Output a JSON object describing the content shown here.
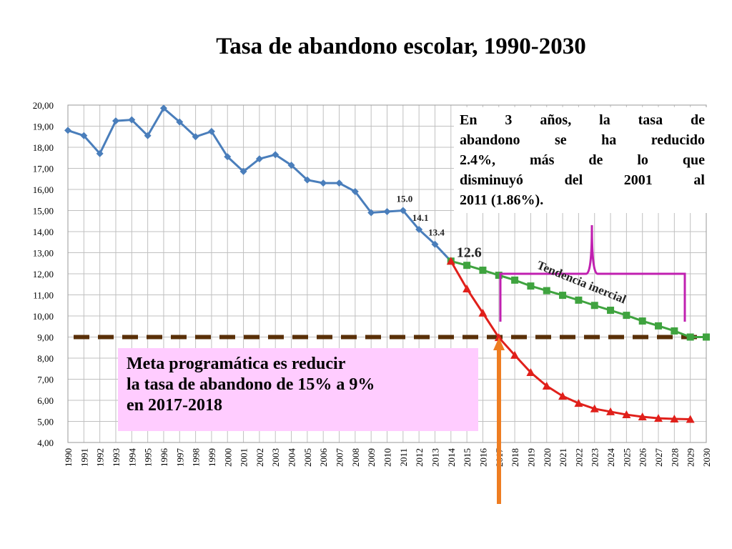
{
  "chart_data": {
    "type": "line",
    "title": "Tasa de abandono escolar, 1990-2030",
    "x": [
      1990,
      1991,
      1992,
      1993,
      1994,
      1995,
      1996,
      1997,
      1998,
      1999,
      2000,
      2001,
      2002,
      2003,
      2004,
      2005,
      2006,
      2007,
      2008,
      2009,
      2010,
      2011,
      2012,
      2013,
      2014,
      2015,
      2016,
      2017,
      2018,
      2019,
      2020,
      2021,
      2022,
      2023,
      2024,
      2025,
      2026,
      2027,
      2028,
      2029,
      2030
    ],
    "xlim": [
      1990,
      2030
    ],
    "ylim": [
      4,
      20
    ],
    "yticks": [
      {
        "value": 4,
        "label": "4,00"
      },
      {
        "value": 5,
        "label": "5,00"
      },
      {
        "value": 6,
        "label": "6,00"
      },
      {
        "value": 7,
        "label": "7,00"
      },
      {
        "value": 8,
        "label": "8,00"
      },
      {
        "value": 9,
        "label": "9,00"
      },
      {
        "value": 10,
        "label": "10,00"
      },
      {
        "value": 11,
        "label": "11,00"
      },
      {
        "value": 12,
        "label": "12,00"
      },
      {
        "value": 13,
        "label": "13,00"
      },
      {
        "value": 14,
        "label": "14,00"
      },
      {
        "value": 15,
        "label": "15,00"
      },
      {
        "value": 16,
        "label": "16,00"
      },
      {
        "value": 17,
        "label": "17,00"
      },
      {
        "value": 18,
        "label": "18,00"
      },
      {
        "value": 19,
        "label": "19,00"
      },
      {
        "value": 20,
        "label": "20,00"
      }
    ],
    "grid": true,
    "series": [
      {
        "color": "#4a7ebb",
        "marker": "diamond",
        "values": [
          18.8,
          18.55,
          17.7,
          19.25,
          19.3,
          18.55,
          19.85,
          19.2,
          18.5,
          18.75,
          17.55,
          16.85,
          17.45,
          17.65,
          17.15,
          16.45,
          16.3,
          16.3,
          15.9,
          14.9,
          14.95,
          15.0,
          14.1,
          13.4,
          12.6,
          null,
          null,
          null,
          null,
          null,
          null,
          null,
          null,
          null,
          null,
          null,
          null,
          null,
          null,
          null,
          null
        ],
        "value_labels": [
          null,
          null,
          null,
          null,
          null,
          null,
          null,
          null,
          null,
          null,
          null,
          null,
          null,
          null,
          null,
          null,
          null,
          null,
          null,
          null,
          null,
          "15.0",
          "14.1",
          "13.4",
          "12.6",
          null,
          null,
          null,
          null,
          null,
          null,
          null,
          null,
          null,
          null,
          null,
          null,
          null,
          null,
          null,
          null
        ]
      },
      {
        "color": "#3fa33f",
        "marker": "square",
        "values": [
          null,
          null,
          null,
          null,
          null,
          null,
          null,
          null,
          null,
          null,
          null,
          null,
          null,
          null,
          null,
          null,
          null,
          null,
          null,
          null,
          null,
          null,
          null,
          null,
          12.6,
          12.4,
          12.17,
          11.93,
          11.7,
          11.42,
          11.2,
          10.98,
          10.75,
          10.5,
          10.27,
          10.03,
          9.76,
          9.53,
          9.29,
          9.0,
          9.0
        ]
      },
      {
        "color": "#e0201b",
        "marker": "triangle",
        "values": [
          null,
          null,
          null,
          null,
          null,
          null,
          null,
          null,
          null,
          null,
          null,
          null,
          null,
          null,
          null,
          null,
          null,
          null,
          null,
          null,
          null,
          null,
          null,
          null,
          12.6,
          11.29,
          10.14,
          8.98,
          8.14,
          7.32,
          6.68,
          6.2,
          5.86,
          5.6,
          5.46,
          5.32,
          5.22,
          5.15,
          5.12,
          5.1,
          null
        ]
      }
    ],
    "target": 9,
    "annotations": {
      "note": [
        "En 3 años, la tasa de",
        "abandono se ha reducido",
        "2.4%, más de lo que",
        "disminuyó del 2001 al",
        "2011 (1.86%)."
      ],
      "trend": "Tendencia inercial",
      "goal": [
        "Meta programática es reducir",
        "la tasa de abandono de 15% a 9%",
        "en 2017-2018"
      ]
    }
  }
}
